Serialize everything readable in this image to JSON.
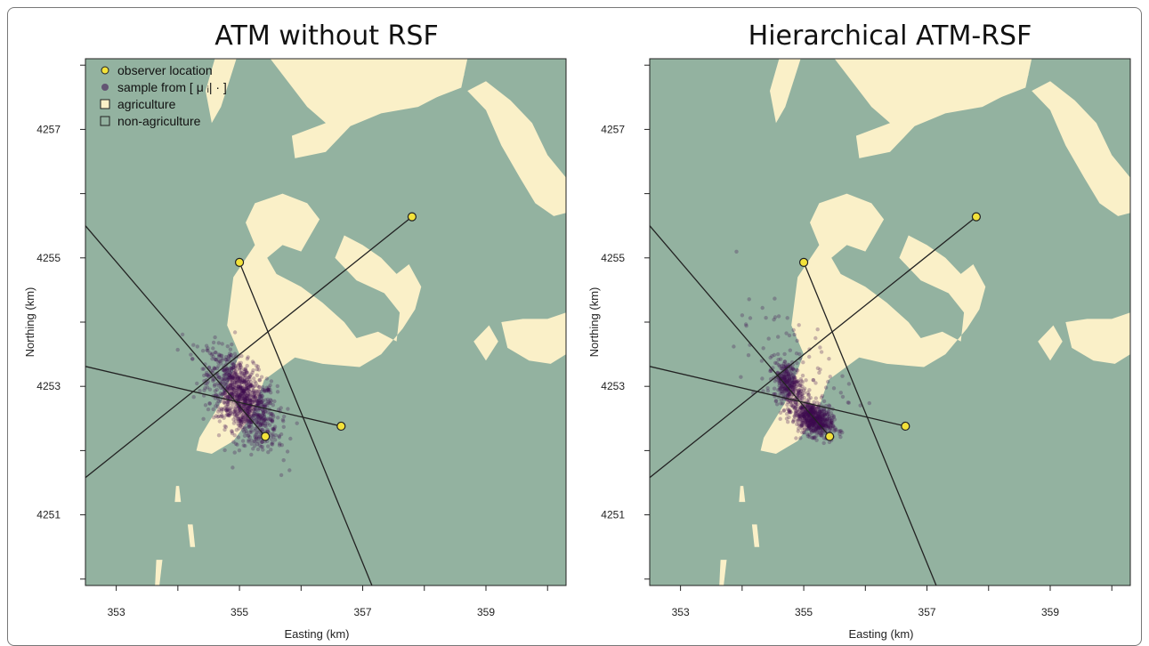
{
  "colors": {
    "agriculture": "#faf0c8",
    "non_agriculture": "#93b2a0",
    "observer": "#f3e23a",
    "sample": "#3d0a4e",
    "line": "#222222"
  },
  "chart_data": [
    {
      "type": "scatter",
      "title": "ATM without RSF",
      "xlabel": "Easting (km)",
      "ylabel": "Northing (km)",
      "xlim": [
        352.5,
        360.3
      ],
      "ylim": [
        4249.9,
        4258.1
      ],
      "xticks": [
        353,
        354,
        355,
        356,
        357,
        358,
        359,
        360
      ],
      "xticklabels": [
        "353",
        "",
        "355",
        "",
        "357",
        "",
        "359",
        ""
      ],
      "yticks": [
        4250,
        4251,
        4252,
        4253,
        4254,
        4255,
        4256,
        4257,
        4258
      ],
      "yticklabels": [
        "",
        "4251",
        "",
        "4253",
        "",
        "4255",
        "",
        "4257",
        ""
      ],
      "grid": false,
      "legend": {
        "placement": "top-left",
        "entries": [
          {
            "label": "observer location",
            "symbol": "observer"
          },
          {
            "label": "sample from [ μ ᵢ| · ]",
            "symbol": "sample"
          },
          {
            "label": "agriculture",
            "symbol": "agriculture"
          },
          {
            "label": "non-agriculture",
            "symbol": "non_agriculture"
          }
        ]
      },
      "observers": [
        {
          "x": 355.0,
          "y": 4254.93
        },
        {
          "x": 357.8,
          "y": 4255.64
        },
        {
          "x": 356.65,
          "y": 4252.38
        },
        {
          "x": 355.42,
          "y": 4252.22
        }
      ],
      "bearing_lines": [
        {
          "x1": 355.0,
          "y1": 4254.93,
          "x2": 357.15,
          "y2": 4249.9
        },
        {
          "x1": 357.8,
          "y1": 4255.64,
          "x2": 352.5,
          "y2": 4251.58
        },
        {
          "x1": 356.65,
          "y1": 4252.38,
          "x2": 352.5,
          "y2": 4253.31
        },
        {
          "x1": 355.42,
          "y1": 4252.22,
          "x2": 352.5,
          "y2": 4255.5
        }
      ],
      "sample_clusters": [
        {
          "x": 355.05,
          "y": 4252.8,
          "sx": 0.28,
          "sy": 0.35,
          "rho": -0.55,
          "n": 1100
        }
      ]
    },
    {
      "type": "scatter",
      "title": "Hierarchical ATM-RSF",
      "xlabel": "Easting (km)",
      "ylabel": "Northing (km)",
      "xlim": [
        352.5,
        360.3
      ],
      "ylim": [
        4249.9,
        4258.1
      ],
      "xticks": [
        353,
        354,
        355,
        356,
        357,
        358,
        359,
        360
      ],
      "xticklabels": [
        "353",
        "",
        "355",
        "",
        "357",
        "",
        "359",
        ""
      ],
      "yticks": [
        4250,
        4251,
        4252,
        4253,
        4254,
        4255,
        4256,
        4257,
        4258
      ],
      "yticklabels": [
        "",
        "4251",
        "",
        "4253",
        "",
        "4255",
        "",
        "4257",
        ""
      ],
      "grid": false,
      "observers": [
        {
          "x": 355.0,
          "y": 4254.93
        },
        {
          "x": 357.8,
          "y": 4255.64
        },
        {
          "x": 356.65,
          "y": 4252.38
        },
        {
          "x": 355.42,
          "y": 4252.22
        }
      ],
      "bearing_lines": [
        {
          "x1": 355.0,
          "y1": 4254.93,
          "x2": 357.15,
          "y2": 4249.9
        },
        {
          "x1": 357.8,
          "y1": 4255.64,
          "x2": 352.5,
          "y2": 4251.58
        },
        {
          "x1": 356.65,
          "y1": 4252.38,
          "x2": 352.5,
          "y2": 4253.31
        },
        {
          "x1": 355.42,
          "y1": 4252.22,
          "x2": 352.5,
          "y2": 4255.5
        }
      ],
      "sample_clusters": [
        {
          "x": 355.15,
          "y": 4252.5,
          "sx": 0.16,
          "sy": 0.14,
          "rho": -0.4,
          "n": 650
        },
        {
          "x": 354.75,
          "y": 4253.05,
          "sx": 0.12,
          "sy": 0.18,
          "rho": -0.3,
          "n": 320
        },
        {
          "x": 354.8,
          "y": 4253.3,
          "sx": 0.45,
          "sy": 0.45,
          "rho": -0.3,
          "n": 90
        }
      ]
    }
  ],
  "agriculture_polygons": [
    [
      [
        354.35,
        4252.2
      ],
      [
        354.7,
        4252.75
      ],
      [
        355.0,
        4253.5
      ],
      [
        354.8,
        4253.95
      ],
      [
        354.9,
        4254.7
      ],
      [
        355.25,
        4255.2
      ],
      [
        355.1,
        4255.55
      ],
      [
        355.25,
        4255.85
      ],
      [
        355.7,
        4256.0
      ],
      [
        356.1,
        4255.85
      ],
      [
        356.3,
        4255.6
      ],
      [
        356.0,
        4255.1
      ],
      [
        355.7,
        4255.2
      ],
      [
        355.45,
        4255.0
      ],
      [
        355.6,
        4254.75
      ],
      [
        356.0,
        4254.55
      ],
      [
        356.35,
        4254.3
      ],
      [
        356.7,
        4254.0
      ],
      [
        356.9,
        4253.75
      ],
      [
        357.25,
        4253.85
      ],
      [
        357.55,
        4253.7
      ],
      [
        357.6,
        4254.15
      ],
      [
        357.35,
        4254.45
      ],
      [
        356.9,
        4254.65
      ],
      [
        356.55,
        4255.0
      ],
      [
        356.7,
        4255.35
      ],
      [
        357.0,
        4255.2
      ],
      [
        357.3,
        4255.0
      ],
      [
        357.55,
        4254.75
      ],
      [
        357.75,
        4254.9
      ],
      [
        357.95,
        4254.55
      ],
      [
        357.85,
        4254.2
      ],
      [
        357.65,
        4253.9
      ],
      [
        357.3,
        4253.5
      ],
      [
        356.95,
        4253.3
      ],
      [
        356.35,
        4253.35
      ],
      [
        355.9,
        4253.45
      ],
      [
        355.4,
        4253.1
      ],
      [
        355.2,
        4252.55
      ],
      [
        354.9,
        4252.15
      ],
      [
        354.55,
        4251.95
      ],
      [
        354.3,
        4252.0
      ]
    ],
    [
      [
        355.5,
        4258.1
      ],
      [
        356.1,
        4257.35
      ],
      [
        356.4,
        4257.1
      ],
      [
        355.85,
        4256.9
      ],
      [
        355.9,
        4256.55
      ],
      [
        356.4,
        4256.65
      ],
      [
        356.8,
        4257.05
      ],
      [
        357.3,
        4257.25
      ],
      [
        357.9,
        4257.35
      ],
      [
        358.4,
        4257.6
      ],
      [
        358.65,
        4257.85
      ],
      [
        358.3,
        4258.1
      ]
    ],
    [
      [
        354.6,
        4258.1
      ],
      [
        354.45,
        4257.6
      ],
      [
        354.55,
        4257.1
      ],
      [
        354.7,
        4257.35
      ],
      [
        354.85,
        4257.8
      ],
      [
        354.95,
        4258.1
      ]
    ],
    [
      [
        357.6,
        4258.1
      ],
      [
        357.8,
        4257.7
      ],
      [
        358.2,
        4257.5
      ],
      [
        358.6,
        4257.65
      ],
      [
        358.7,
        4258.1
      ]
    ],
    [
      [
        358.7,
        4257.6
      ],
      [
        359.0,
        4257.3
      ],
      [
        359.25,
        4256.75
      ],
      [
        359.55,
        4256.25
      ],
      [
        359.8,
        4255.85
      ],
      [
        360.1,
        4255.65
      ],
      [
        360.3,
        4255.7
      ],
      [
        360.3,
        4256.25
      ],
      [
        360.0,
        4256.6
      ],
      [
        359.75,
        4257.1
      ],
      [
        359.4,
        4257.45
      ],
      [
        359.0,
        4257.75
      ]
    ],
    [
      [
        359.25,
        4254.0
      ],
      [
        359.35,
        4253.6
      ],
      [
        359.7,
        4253.4
      ],
      [
        360.05,
        4253.35
      ],
      [
        360.3,
        4253.5
      ],
      [
        360.3,
        4254.15
      ],
      [
        360.0,
        4254.05
      ],
      [
        359.6,
        4254.05
      ]
    ],
    [
      [
        358.8,
        4253.7
      ],
      [
        359.0,
        4253.4
      ],
      [
        359.2,
        4253.7
      ],
      [
        359.05,
        4253.95
      ]
    ],
    [
      [
        354.2,
        4250.5
      ],
      [
        354.28,
        4250.5
      ],
      [
        354.24,
        4250.85
      ],
      [
        354.16,
        4250.85
      ]
    ],
    [
      [
        353.65,
        4250.3
      ],
      [
        353.75,
        4250.3
      ],
      [
        353.7,
        4249.9
      ],
      [
        353.63,
        4249.9
      ]
    ],
    [
      [
        353.95,
        4251.2
      ],
      [
        354.05,
        4251.2
      ],
      [
        354.02,
        4251.45
      ],
      [
        353.97,
        4251.45
      ]
    ]
  ]
}
